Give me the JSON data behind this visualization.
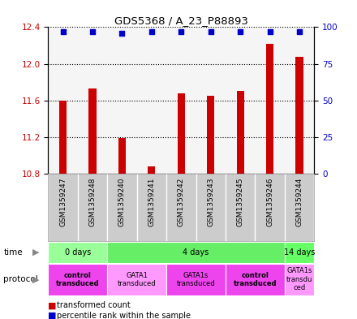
{
  "title": "GDS5368 / A_23_P88893",
  "samples": [
    "GSM1359247",
    "GSM1359248",
    "GSM1359240",
    "GSM1359241",
    "GSM1359242",
    "GSM1359243",
    "GSM1359245",
    "GSM1359246",
    "GSM1359244"
  ],
  "bar_values": [
    11.6,
    11.73,
    11.19,
    10.88,
    11.68,
    11.65,
    11.7,
    12.22,
    12.08
  ],
  "percentile_values": [
    97,
    97,
    96,
    97,
    97,
    97,
    97,
    97,
    97
  ],
  "ylim": [
    10.8,
    12.4
  ],
  "yticks_left": [
    10.8,
    11.2,
    11.6,
    12.0,
    12.4
  ],
  "yticks_right": [
    0,
    25,
    50,
    75,
    100
  ],
  "bar_color": "#cc0000",
  "dot_color": "#0000cc",
  "bar_bottom": 10.8,
  "time_groups": [
    {
      "label": "0 days",
      "start": 0,
      "end": 2,
      "color": "#99ff99"
    },
    {
      "label": "4 days",
      "start": 2,
      "end": 8,
      "color": "#66ee66"
    },
    {
      "label": "14 days",
      "start": 8,
      "end": 9,
      "color": "#66ff66"
    }
  ],
  "protocol_groups": [
    {
      "label": "control\ntransduced",
      "start": 0,
      "end": 2,
      "color": "#ee44ee",
      "bold": true
    },
    {
      "label": "GATA1\ntransduced",
      "start": 2,
      "end": 4,
      "color": "#ff99ff",
      "bold": false
    },
    {
      "label": "GATA1s\ntransduced",
      "start": 4,
      "end": 6,
      "color": "#ee44ee",
      "bold": false
    },
    {
      "label": "control\ntransduced",
      "start": 6,
      "end": 8,
      "color": "#ee44ee",
      "bold": true
    },
    {
      "label": "GATA1s\ntransdu\nced",
      "start": 8,
      "end": 9,
      "color": "#ff99ff",
      "bold": false
    }
  ],
  "legend_bar_label": "transformed count",
  "legend_dot_label": "percentile rank within the sample",
  "background_color": "#ffffff",
  "sample_bg_color": "#cccccc",
  "sample_cell_border": "#ffffff"
}
